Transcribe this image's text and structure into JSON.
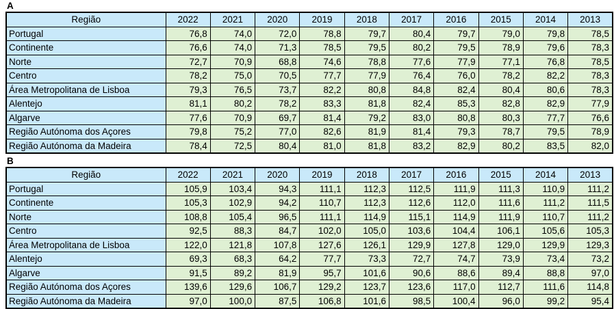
{
  "colors": {
    "header_fill": "#C9E9FA",
    "value_fill": "#DFF0D3",
    "border": "#000000",
    "text": "#000000"
  },
  "tables": [
    {
      "label": "A",
      "region_header": "Região",
      "years": [
        "2022",
        "2021",
        "2020",
        "2019",
        "2018",
        "2017",
        "2016",
        "2015",
        "2014",
        "2013"
      ],
      "rows": [
        {
          "region": "Portugal",
          "values": [
            "76,8",
            "74,0",
            "72,0",
            "78,8",
            "79,7",
            "80,4",
            "79,7",
            "79,0",
            "79,8",
            "78,5"
          ]
        },
        {
          "region": "Continente",
          "values": [
            "76,6",
            "74,0",
            "71,3",
            "78,5",
            "79,5",
            "80,2",
            "79,5",
            "78,9",
            "79,6",
            "78,3"
          ]
        },
        {
          "region": "Norte",
          "values": [
            "72,7",
            "70,9",
            "68,8",
            "74,6",
            "78,8",
            "77,6",
            "77,9",
            "77,1",
            "76,8",
            "78,5"
          ]
        },
        {
          "region": "Centro",
          "values": [
            "78,2",
            "75,0",
            "70,5",
            "77,7",
            "77,9",
            "76,4",
            "76,0",
            "78,2",
            "82,2",
            "78,3"
          ]
        },
        {
          "region": "Área Metropolitana de Lisboa",
          "values": [
            "79,3",
            "76,5",
            "73,7",
            "82,2",
            "80,8",
            "84,8",
            "82,4",
            "80,4",
            "80,6",
            "78,3"
          ]
        },
        {
          "region": "Alentejo",
          "values": [
            "81,1",
            "80,2",
            "78,2",
            "83,3",
            "81,8",
            "82,4",
            "85,3",
            "82,8",
            "82,9",
            "77,9"
          ]
        },
        {
          "region": "Algarve",
          "values": [
            "77,6",
            "70,9",
            "69,7",
            "81,4",
            "79,2",
            "83,0",
            "80,8",
            "80,3",
            "77,7",
            "76,6"
          ]
        },
        {
          "region": "Região Autónoma dos Açores",
          "values": [
            "79,8",
            "75,2",
            "77,0",
            "82,6",
            "81,9",
            "81,4",
            "79,3",
            "78,7",
            "79,5",
            "78,9"
          ]
        },
        {
          "region": "Região Autónoma da Madeira",
          "values": [
            "78,4",
            "72,5",
            "80,4",
            "81,0",
            "81,8",
            "83,2",
            "82,9",
            "80,2",
            "83,5",
            "82,0"
          ]
        }
      ]
    },
    {
      "label": "B",
      "region_header": "Região",
      "years": [
        "2022",
        "2021",
        "2020",
        "2019",
        "2018",
        "2017",
        "2016",
        "2015",
        "2014",
        "2013"
      ],
      "rows": [
        {
          "region": "Portugal",
          "values": [
            "105,9",
            "103,4",
            "94,3",
            "111,1",
            "112,3",
            "112,5",
            "111,9",
            "111,3",
            "110,9",
            "111,2"
          ]
        },
        {
          "region": "Continente",
          "values": [
            "105,3",
            "102,9",
            "94,2",
            "110,7",
            "112,3",
            "112,6",
            "112,0",
            "111,6",
            "111,2",
            "111,5"
          ]
        },
        {
          "region": "Norte",
          "values": [
            "108,8",
            "105,4",
            "96,5",
            "111,1",
            "114,9",
            "115,1",
            "114,9",
            "111,9",
            "110,7",
            "111,2"
          ]
        },
        {
          "region": "Centro",
          "values": [
            "92,5",
            "88,3",
            "84,7",
            "102,0",
            "105,0",
            "103,6",
            "104,4",
            "106,1",
            "105,6",
            "105,3"
          ]
        },
        {
          "region": "Área Metropolitana de Lisboa",
          "values": [
            "122,0",
            "121,8",
            "107,8",
            "127,6",
            "126,1",
            "129,9",
            "127,8",
            "129,0",
            "129,9",
            "129,3"
          ]
        },
        {
          "region": "Alentejo",
          "values": [
            "69,3",
            "68,3",
            "64,2",
            "77,7",
            "73,3",
            "72,7",
            "74,7",
            "73,9",
            "73,4",
            "73,2"
          ]
        },
        {
          "region": "Algarve",
          "values": [
            "91,5",
            "89,2",
            "81,9",
            "95,7",
            "101,6",
            "90,6",
            "88,6",
            "89,4",
            "88,8",
            "97,0"
          ]
        },
        {
          "region": "Região Autónoma dos Açores",
          "values": [
            "139,6",
            "129,6",
            "106,7",
            "129,2",
            "123,7",
            "123,6",
            "117,0",
            "112,7",
            "111,6",
            "114,8"
          ]
        },
        {
          "region": "Região Autónoma da Madeira",
          "values": [
            "97,0",
            "100,0",
            "87,5",
            "106,8",
            "101,6",
            "98,5",
            "100,4",
            "96,0",
            "99,2",
            "95,4"
          ]
        }
      ]
    }
  ]
}
